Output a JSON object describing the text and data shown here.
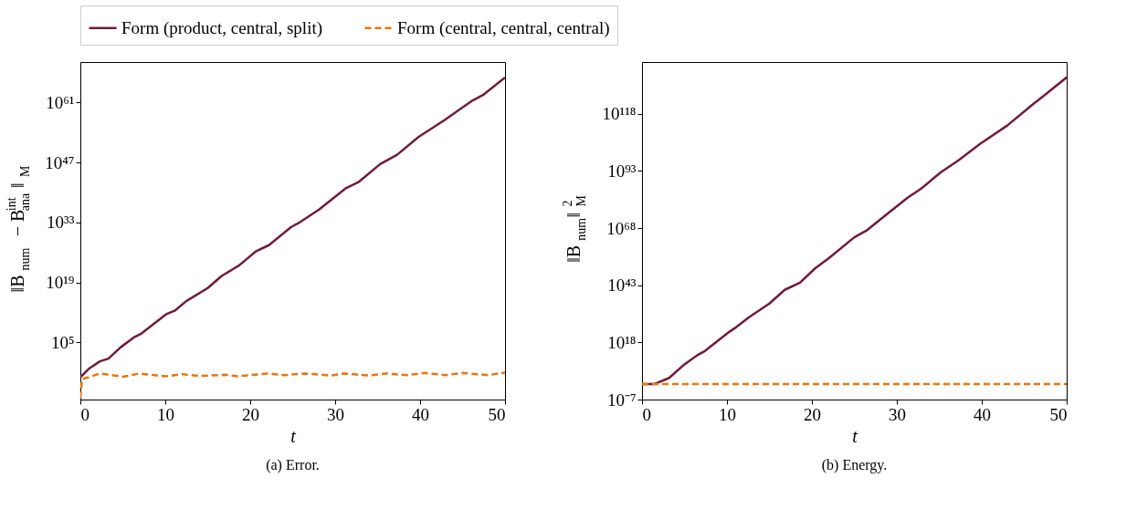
{
  "chart_data": [
    {
      "type": "line",
      "title": "(a) Error.",
      "xlabel": "t",
      "ylabel": "‖B$_{num}$ − B$_{ana}$$^{int}$‖$_{M}$",
      "log": "y",
      "legend": "top",
      "grid": false,
      "xlim": [
        0,
        50
      ],
      "xticks": [
        0,
        10,
        20,
        30,
        40,
        50
      ],
      "ylim": [
        5e-09,
        2.5e+70
      ],
      "yticks": [
        {
          "value": 100000.0,
          "label": "10⁵"
        },
        {
          "value": 1e+19,
          "label": "10¹⁹"
        },
        {
          "value": 1e+33,
          "label": "10³³"
        },
        {
          "value": 1e+47,
          "label": "10⁴⁷"
        },
        {
          "value": 1e+61,
          "label": "10⁶¹"
        }
      ],
      "series": [
        {
          "name": "Form (product, central, split)",
          "color": "#701c34",
          "line_style": "solid",
          "x": [
            0,
            1.07,
            2.3,
            3.3,
            4.75,
            6.4,
            7.2,
            10.1,
            11.1,
            12.5,
            15,
            16.6,
            18.7,
            20.7,
            22.2,
            24.8,
            25.9,
            28.1,
            31.2,
            32.8,
            35.3,
            37.3,
            39.8,
            42.9,
            46,
            47.4,
            50
          ],
          "values": [
            0.0008,
            0.1,
            4,
            18,
            8000.0,
            2000000.0,
            13000000.0,
            400000000000.0,
            2500000000000.0,
            500000000000000.0,
            5e+17,
            3e+20,
            1e+23,
            2e+26,
            5e+27,
            8e+31,
            1.3e+33,
            1e+36,
            8e+40,
            3e+42,
            4e+46,
            6e+48,
            8e+52,
            8e+56,
            1.6e+61,
            5e+62,
            6e+66
          ]
        },
        {
          "name": "Form (central, central, central)",
          "color": "#e8750f",
          "line_style": "dashed",
          "x": [
            0,
            0.2,
            1,
            2.3,
            5,
            7,
            10,
            12,
            14,
            17,
            18.5,
            22,
            24,
            26.5,
            29.5,
            31,
            34,
            36,
            38.5,
            40.5,
            43,
            45,
            48,
            50
          ],
          "values": [
            1e-08,
            0.0003,
            0.0008,
            0.006,
            0.001,
            0.006,
            0.0013,
            0.004,
            0.0016,
            0.003,
            0.0013,
            0.006,
            0.0025,
            0.006,
            0.002,
            0.006,
            0.002,
            0.006,
            0.0025,
            0.008,
            0.0025,
            0.008,
            0.0025,
            0.01
          ]
        }
      ]
    },
    {
      "type": "line",
      "title": "(b) Energy.",
      "xlabel": "t",
      "ylabel": "‖B$_{num}$‖$_{M}$$^{2}$",
      "log": "y",
      "legend": "top",
      "grid": false,
      "xlim": [
        0,
        50
      ],
      "xticks": [
        0,
        10,
        20,
        30,
        40,
        50
      ],
      "ylim": [
        1e-07,
        5e+140
      ],
      "yticks": [
        {
          "value": 1e-07,
          "label": "10⁻⁷"
        },
        {
          "value": 1e+18,
          "label": "10¹⁸"
        },
        {
          "value": 1e+43,
          "label": "10⁴³"
        },
        {
          "value": 1e+68,
          "label": "10⁶⁸"
        },
        {
          "value": 1e+93,
          "label": "10⁹³"
        },
        {
          "value": 1e+118,
          "label": "10¹¹⁸"
        }
      ],
      "series": [
        {
          "name": "Form (product, central, split)",
          "color": "#701c34",
          "line_style": "solid",
          "x": [
            0,
            1.5,
            3.2,
            5,
            6.5,
            7.3,
            10.3,
            11.1,
            12.6,
            15,
            16.8,
            18.6,
            20.4,
            22,
            25,
            26.5,
            28,
            31.3,
            32.8,
            35.2,
            37.3,
            39.8,
            43,
            46,
            47.3,
            50
          ],
          "values": [
            0.68,
            0.68,
            300.0,
            250000000.0,
            2500000000000.0,
            100000000000000.0,
            5e+22,
            5e+24,
            1e+29,
            1e+35,
            1e+41,
            1.3e+44,
            3e+50,
            8e+54,
            1e+64,
            1.3e+67,
            4e+71,
            2.5e+81,
            1.3e+85,
            3e+92,
            6e+97,
            8e+104,
            8e+112,
            1.3e+122,
            8e+125,
            1e+134
          ]
        },
        {
          "name": "Form (central, central, central)",
          "color": "#e8750f",
          "line_style": "dashed",
          "x": [
            0,
            50
          ],
          "values": [
            0.68,
            0.68
          ]
        }
      ]
    }
  ]
}
